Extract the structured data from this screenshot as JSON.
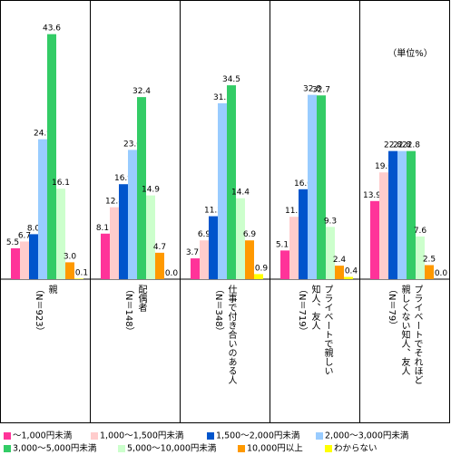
{
  "chart_data": {
    "type": "bar",
    "unit_label": "（単位%）",
    "categories": [
      [
        "親",
        "（N＝923）"
      ],
      [
        "配偶者",
        "（N＝148）"
      ],
      [
        "仕事で付き合いのある人",
        "（N＝348）"
      ],
      [
        "プライベートで親しい",
        "知人、友人",
        "（N＝719）"
      ],
      [
        "プライベートでそれほど",
        "親しくない知人、友人",
        "（N＝79）"
      ]
    ],
    "series": [
      {
        "name": "～1,000円未満",
        "color": "#ff3399",
        "values": [
          5.5,
          8.1,
          3.7,
          5.1,
          13.9
        ],
        "value_labels": [
          "5.5",
          "8.1",
          "3.7",
          "5.1",
          "13.9"
        ]
      },
      {
        "name": "1,000～1,500円未満",
        "color": "#ffcccc",
        "values": [
          6.7,
          12.8,
          6.9,
          11.1,
          19.0
        ],
        "value_labels": [
          "6.7",
          "12.8",
          "6.9",
          "11.1",
          "19.0"
        ]
      },
      {
        "name": "1,500～2,000円未満",
        "color": "#0055cc",
        "values": [
          8.0,
          16.9,
          11.2,
          16.0,
          22.8
        ],
        "value_labels": [
          "8.0",
          "16.9",
          "11.2",
          "16.0",
          "22.8"
        ]
      },
      {
        "name": "2,000～3,000円未満",
        "color": "#99ccff",
        "values": [
          24.9,
          23.0,
          31.3,
          32.8,
          22.8
        ],
        "value_labels": [
          "24.9",
          "23.0",
          "31.3",
          "32.8",
          "22.8"
        ]
      },
      {
        "name": "3,000～5,000円未満",
        "color": "#33cc66",
        "values": [
          43.6,
          32.4,
          34.5,
          32.7,
          22.8
        ],
        "value_labels": [
          "43.6",
          "32.4",
          "34.5",
          "32.7",
          "22.8"
        ]
      },
      {
        "name": "5,000～10,000円未満",
        "color": "#ccffcc",
        "values": [
          16.1,
          14.9,
          14.4,
          9.3,
          7.6
        ],
        "value_labels": [
          "16.1",
          "14.9",
          "14.4",
          "9.3",
          "7.6"
        ]
      },
      {
        "name": "10,000円以上",
        "color": "#ff9900",
        "values": [
          3.0,
          4.7,
          6.9,
          2.4,
          2.5
        ],
        "value_labels": [
          "3.0",
          "4.7",
          "6.9",
          "2.4",
          "2.5"
        ]
      },
      {
        "name": "わからない",
        "color": "#ffff00",
        "values": [
          0.1,
          0.0,
          0.9,
          0.4,
          0.0
        ],
        "value_labels": [
          "0.1",
          "0.0",
          "0.9",
          "0.4",
          "0.0"
        ]
      }
    ]
  }
}
